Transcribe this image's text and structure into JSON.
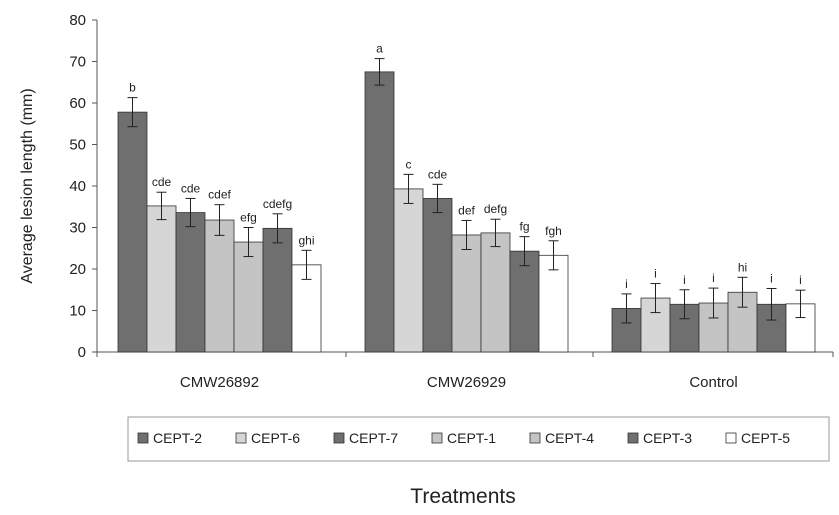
{
  "chart_data": {
    "type": "bar",
    "xlabel": "Treatments",
    "ylabel": "Average lesion length (mm)",
    "ylim": [
      0,
      80
    ],
    "yticks": [
      0,
      10,
      20,
      30,
      40,
      50,
      60,
      70,
      80
    ],
    "grid": false,
    "legend_position": "bottom",
    "categories": [
      "CMW26892",
      "CMW26929",
      "Control"
    ],
    "series": [
      {
        "name": "CEPT-2",
        "color": "#6f6f6f",
        "values": [
          57.8,
          67.5,
          10.5
        ],
        "errors": [
          3.5,
          3.2,
          3.5
        ],
        "letters": [
          "b",
          "a",
          "i"
        ]
      },
      {
        "name": "CEPT-6",
        "color": "#d6d6d6",
        "values": [
          35.2,
          39.3,
          13.0
        ],
        "errors": [
          3.3,
          3.5,
          3.5
        ],
        "letters": [
          "cde",
          "c",
          "i"
        ]
      },
      {
        "name": "CEPT-7",
        "color": "#6f6f6f",
        "values": [
          33.6,
          37.0,
          11.5
        ],
        "errors": [
          3.4,
          3.4,
          3.5
        ],
        "letters": [
          "cde",
          "cde",
          "i"
        ]
      },
      {
        "name": "CEPT-1",
        "color": "#c4c4c4",
        "values": [
          31.8,
          28.2,
          11.8
        ],
        "errors": [
          3.7,
          3.5,
          3.6
        ],
        "letters": [
          "cdef",
          "def",
          "i"
        ]
      },
      {
        "name": "CEPT-4",
        "color": "#c4c4c4",
        "values": [
          26.5,
          28.7,
          14.4
        ],
        "errors": [
          3.5,
          3.3,
          3.6
        ],
        "letters": [
          "efg",
          "defg",
          "hi"
        ]
      },
      {
        "name": "CEPT-3",
        "color": "#6f6f6f",
        "values": [
          29.8,
          24.3,
          11.5
        ],
        "errors": [
          3.5,
          3.5,
          3.8
        ],
        "letters": [
          "cdefg",
          "fg",
          "i"
        ]
      },
      {
        "name": "CEPT-5",
        "color": "#ffffff",
        "values": [
          21.0,
          23.3,
          11.6
        ],
        "errors": [
          3.5,
          3.5,
          3.3
        ],
        "letters": [
          "ghi",
          "fgh",
          "i"
        ]
      }
    ]
  }
}
